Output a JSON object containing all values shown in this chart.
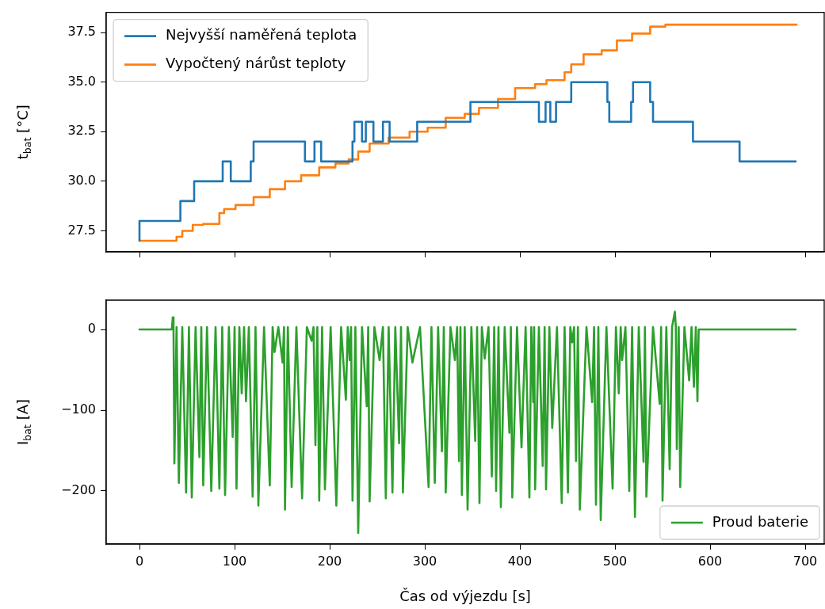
{
  "chart_data": [
    {
      "type": "step",
      "ylabel": "t$_{bat}$ [°C]",
      "xlim": [
        -35,
        720
      ],
      "xticks": [
        {
          "value": 0,
          "label": null
        },
        {
          "value": 100,
          "label": null
        },
        {
          "value": 200,
          "label": null
        },
        {
          "value": 300,
          "label": null
        },
        {
          "value": 400,
          "label": null
        },
        {
          "value": 500,
          "label": null
        },
        {
          "value": 600,
          "label": null
        },
        {
          "value": 700,
          "label": null
        }
      ],
      "ylim": [
        26.44,
        38.52
      ],
      "yticks": [
        27.5,
        {
          "value": 30,
          "label": "30.0"
        },
        32.5,
        {
          "value": 35,
          "label": "35.0"
        },
        37.5
      ],
      "tick_labels": "y",
      "legend": "top left",
      "marker": "none",
      "line_style": "solid",
      "grid": false,
      "series": [
        {
          "name": "Nejvyšší naměřená teplota",
          "color": "#1f77b4",
          "x": [
            0,
            43,
            57.5,
            87.5,
            96,
            117,
            120,
            174,
            184,
            191,
            224,
            226,
            234,
            238,
            246,
            256,
            263,
            292,
            348,
            420,
            427,
            432,
            438,
            454,
            492,
            494,
            517,
            519,
            537,
            540,
            582,
            631,
            675,
            690
          ],
          "values": [
            27,
            28,
            29,
            30,
            31,
            30,
            31,
            32,
            31,
            32,
            31,
            32,
            33,
            32,
            33,
            32,
            33,
            32,
            33,
            34,
            33,
            34,
            33,
            34,
            35,
            34,
            33,
            34,
            35,
            34,
            33,
            32,
            31,
            31
          ]
        },
        {
          "name": "Vypočtený nárůst teploty",
          "color": "#ff7f0e",
          "x": [
            0,
            39,
            45,
            56,
            67,
            84,
            89,
            101,
            120,
            137,
            153,
            170,
            189,
            206,
            220,
            230,
            242,
            262,
            284,
            303,
            322,
            342,
            357,
            377,
            395,
            416,
            428,
            447,
            454,
            467,
            486,
            502,
            518,
            537,
            553,
            571,
            691
          ],
          "values": [
            27.0,
            27.0,
            27.2,
            27.5,
            27.8,
            27.85,
            28.4,
            28.6,
            28.8,
            29.2,
            29.6,
            30.0,
            30.3,
            30.7,
            30.9,
            31.1,
            31.5,
            31.9,
            32.2,
            32.5,
            32.7,
            33.2,
            33.4,
            33.7,
            34.15,
            34.7,
            34.9,
            35.1,
            35.5,
            35.9,
            36.4,
            36.6,
            37.1,
            37.45,
            37.8,
            37.9,
            37.9
          ]
        }
      ]
    },
    {
      "type": "line",
      "xlabel": "Čas od výjezdu [s]",
      "ylabel": "I$_{bat}$ [A]",
      "xlim": [
        -35,
        720
      ],
      "xticks": [
        0,
        100,
        200,
        300,
        400,
        500,
        600,
        700
      ],
      "ylim": [
        -265.7,
        36.3
      ],
      "yticks": [
        {
          "value": -200,
          "label": "−200"
        },
        {
          "value": -100,
          "label": "−100"
        },
        0
      ],
      "legend": "bottom right",
      "marker": "none",
      "line_style": "solid",
      "grid": false,
      "series": [
        {
          "name": "Proud baterie",
          "color": "#2ca02c",
          "x": [
            0,
            34,
            35,
            35.8,
            36.7,
            39,
            41.4,
            45,
            49,
            52,
            55,
            59,
            63,
            65,
            67,
            71,
            75.5,
            80,
            84,
            87,
            90,
            94,
            98,
            100,
            102,
            105,
            107.5,
            110,
            112,
            115,
            119,
            122,
            125,
            131,
            137,
            140,
            142,
            146,
            150.5,
            152,
            153,
            156,
            160,
            165,
            171,
            176,
            181,
            183,
            185,
            187,
            189,
            192,
            195,
            201,
            207,
            212,
            217,
            219,
            221,
            222.5,
            224,
            227,
            230,
            234,
            239,
            240.5,
            242,
            247,
            252.5,
            256,
            259,
            262,
            266,
            269,
            273,
            275,
            277,
            282,
            287,
            295,
            304,
            307,
            310.5,
            314,
            318,
            320,
            322,
            327,
            331.7,
            334,
            336,
            337.5,
            339,
            342,
            345,
            349,
            353,
            355,
            357.5,
            360,
            363,
            367,
            370.5,
            373,
            375,
            377.5,
            380,
            384,
            389,
            390.5,
            392,
            397,
            401.7,
            406,
            410,
            412,
            414,
            415,
            416,
            420,
            424,
            426,
            427.5,
            431,
            434,
            439,
            444,
            447,
            450.5,
            453,
            455,
            457,
            459,
            461,
            463,
            470,
            476,
            478,
            480,
            482.5,
            485,
            491,
            497.5,
            501,
            504,
            506,
            507.5,
            511,
            515,
            518,
            521,
            525,
            530,
            531.5,
            533,
            540,
            547,
            548.5,
            550,
            554,
            557.5,
            560,
            563,
            564,
            565,
            567,
            568.6,
            573,
            578,
            580.5,
            583,
            585,
            586.7,
            588,
            690
          ],
          "values": [
            0,
            0,
            15,
            2,
            -166,
            3,
            -190,
            3,
            -202,
            3,
            -208,
            3,
            -158,
            3,
            -193,
            3,
            -200,
            3,
            -197,
            3,
            -205,
            3,
            -133,
            3,
            -197,
            3,
            -79,
            3,
            -89,
            3,
            -207,
            3,
            -218,
            3,
            -193,
            3,
            -28,
            3,
            -41,
            3,
            -223,
            3,
            -195,
            3,
            -209,
            3,
            -14,
            3,
            -143,
            3,
            -212,
            3,
            -198,
            3,
            -218,
            3,
            -87,
            3,
            -38,
            3,
            -212,
            3,
            -252,
            3,
            -95,
            3,
            -213,
            3,
            -38,
            3,
            -209,
            3,
            -202,
            3,
            -141,
            3,
            -202,
            3,
            -41,
            3,
            -195,
            3,
            -190,
            3,
            -151,
            3,
            -202,
            3,
            -38,
            3,
            -163,
            3,
            -205,
            3,
            -223,
            3,
            -138,
            3,
            -215,
            3,
            -36,
            3,
            -182,
            3,
            -200,
            3,
            -220,
            3,
            -128,
            3,
            -208,
            3,
            -146,
            3,
            -208,
            3,
            -90,
            3,
            -198,
            3,
            -169,
            3,
            -198,
            3,
            -122,
            3,
            -215,
            3,
            -202,
            3,
            -16,
            3,
            -163,
            3,
            -223,
            3,
            -90,
            3,
            -217,
            3,
            -236,
            3,
            -197,
            3,
            -79,
            3,
            -38,
            3,
            -200,
            3,
            -232,
            3,
            -164,
            3,
            -207,
            3,
            -92,
            3,
            -212,
            3,
            -173,
            3,
            22,
            3,
            -148,
            3,
            -195,
            3,
            -63,
            3,
            -71,
            3,
            -89,
            0,
            0
          ]
        }
      ]
    }
  ]
}
